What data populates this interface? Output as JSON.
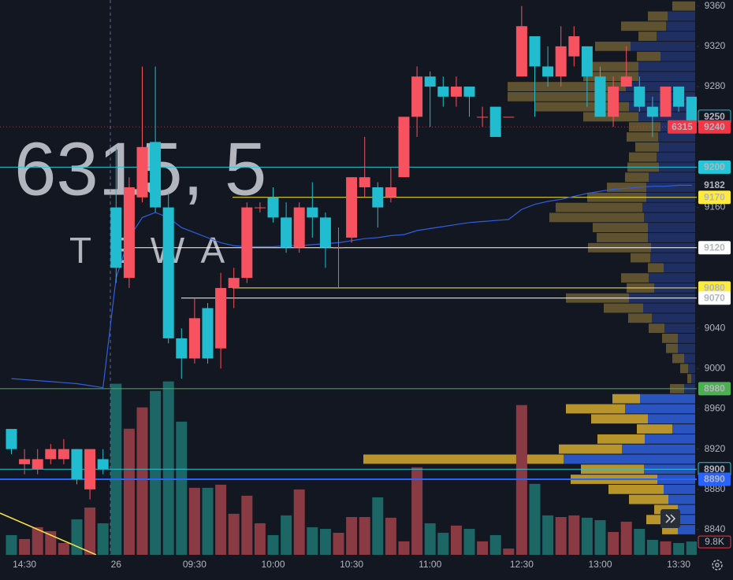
{
  "chart_data": {
    "type": "candlestick",
    "watermark": [
      "6315, 5",
      "TEWA"
    ],
    "categories": [
      null,
      "14:30",
      null,
      null,
      null,
      null,
      null,
      null,
      "26",
      null,
      null,
      null,
      null,
      null,
      "09:30",
      null,
      null,
      null,
      null,
      null,
      "10:00",
      null,
      null,
      null,
      null,
      null,
      "10:30",
      null,
      null,
      null,
      null,
      null,
      "11:00",
      null,
      null,
      null,
      null,
      null,
      null,
      "12:30",
      null,
      null,
      null,
      null,
      null,
      "13:00",
      null,
      null,
      null,
      null,
      null,
      "13:30",
      null
    ],
    "open": [
      8940,
      8905,
      8900,
      8910,
      8910,
      8920,
      8880,
      8910,
      9160,
      9090,
      9170,
      9225,
      9160,
      9030,
      9010,
      9060,
      9020,
      9080,
      9090,
      9160,
      9170,
      9150,
      9120,
      9160,
      9150,
      9120,
      9130,
      9180,
      9180,
      9170,
      9190,
      9250,
      9290,
      9280,
      9270,
      9280,
      9250,
      9260,
      9250,
      9290,
      9330,
      9300,
      9290,
      9310,
      9320,
      9290,
      9250,
      9280,
      9280,
      9260,
      9250,
      9280,
      9270
    ],
    "high": [
      8940,
      8920,
      8920,
      8925,
      8930,
      8920,
      8920,
      8920,
      9220,
      9190,
      9300,
      9300,
      9175,
      9040,
      9070,
      9065,
      9095,
      9100,
      9165,
      9165,
      9180,
      9165,
      9165,
      9185,
      9155,
      9140,
      9190,
      9230,
      9185,
      9200,
      9250,
      9300,
      9295,
      9290,
      9290,
      9280,
      9260,
      9260,
      9250,
      9360,
      9330,
      9320,
      9340,
      9340,
      9320,
      9300,
      9290,
      9320,
      9290,
      9270,
      9280,
      9280,
      9270
    ],
    "low": [
      8915,
      8895,
      8895,
      8905,
      8905,
      8885,
      8870,
      8895,
      9085,
      9080,
      9165,
      9155,
      9025,
      8990,
      9005,
      9005,
      9000,
      9060,
      9085,
      9155,
      9145,
      9115,
      9115,
      9130,
      9100,
      9080,
      9125,
      9170,
      9140,
      9165,
      9190,
      9230,
      9240,
      9260,
      9260,
      9250,
      9240,
      9230,
      9250,
      9290,
      9250,
      9280,
      9280,
      9300,
      9260,
      9250,
      9240,
      9280,
      9255,
      9230,
      9250,
      9255,
      9235
    ],
    "close": [
      8920,
      8910,
      8910,
      8920,
      8920,
      8890,
      8920,
      8900,
      9100,
      9180,
      9220,
      9160,
      9030,
      9010,
      9050,
      9010,
      9080,
      9090,
      9160,
      9160,
      9150,
      9120,
      9160,
      9150,
      9120,
      9120,
      9190,
      9190,
      9160,
      9180,
      9250,
      9290,
      9280,
      9270,
      9280,
      9270,
      9250,
      9230,
      9250,
      9340,
      9300,
      9290,
      9320,
      9330,
      9290,
      9250,
      9280,
      9290,
      9260,
      9250,
      9280,
      9260,
      9240
    ],
    "up_color": "#f7525f",
    "down_color": "#22bcd0",
    "ylim": [
      8815,
      9366
    ],
    "yticks": [
      8840,
      8880,
      8920,
      8960,
      9000,
      9040,
      9080,
      9120,
      9160,
      9200,
      9240,
      9280,
      9320,
      9360
    ],
    "volume": {
      "values": [
        14500,
        11600,
        20300,
        17400,
        8700,
        26100,
        34800,
        23200,
        125900,
        92800,
        108500,
        120600,
        127600,
        98000,
        49300,
        49300,
        51600,
        30200,
        43500,
        23200,
        14500,
        29000,
        48100,
        20300,
        19100,
        16200,
        27800,
        27800,
        42300,
        27300,
        9900,
        64400,
        23200,
        16200,
        21500,
        19100,
        9900,
        14500,
        4600,
        110200,
        52200,
        29000,
        27800,
        29000,
        27300,
        25500,
        16800,
        24400,
        19100,
        11000,
        9900,
        8700,
        9800
      ],
      "ylim": [
        0,
        150000
      ],
      "up_color": "#8a3a42",
      "down_color": "#1c6666",
      "last": {
        "value": 9800,
        "label": "9.8K"
      },
      "label_color": "#f23645"
    },
    "vwap": {
      "color": "#2f5fe0",
      "values": [
        8990,
        8989,
        8988,
        8987,
        8986,
        8985,
        8983,
        8981,
        9090,
        9130,
        9150,
        9155,
        9150,
        9140,
        9135,
        9130,
        9125,
        9122,
        9121,
        9121,
        9121,
        9122,
        9122,
        9123,
        9124,
        9125,
        9127,
        9129,
        9130,
        9132,
        9133,
        9137,
        9139,
        9141,
        9143,
        9145,
        9146,
        9147,
        9148,
        9158,
        9163,
        9166,
        9168,
        9171,
        9174,
        9176,
        9178,
        9179,
        9180,
        9181,
        9181,
        9182,
        9182
      ]
    },
    "profile": {
      "levels": [
        9360,
        9350,
        9340,
        9330,
        9320,
        9310,
        9300,
        9290,
        9280,
        9270,
        9260,
        9250,
        9240,
        9230,
        9220,
        9210,
        9200,
        9190,
        9180,
        9170,
        9160,
        9150,
        9140,
        9130,
        9120,
        9110,
        9100,
        9090,
        9080,
        9070,
        9060,
        9050,
        9040,
        9030,
        9020,
        9010,
        9000,
        8990,
        8980,
        8970,
        8960,
        8950,
        8940,
        8930,
        8920,
        8910,
        8900,
        8890,
        8880,
        8870,
        8860,
        8850,
        8840
      ],
      "up": [
        29,
        25,
        57,
        23,
        45,
        30,
        60,
        70,
        150,
        140,
        120,
        70,
        40,
        40,
        30,
        35,
        40,
        30,
        50,
        75,
        110,
        120,
        70,
        65,
        80,
        25,
        20,
        35,
        35,
        80,
        50,
        30,
        20,
        20,
        15,
        15,
        10,
        5,
        18,
        35,
        75,
        72,
        45,
        60,
        80,
        254,
        80,
        110,
        70,
        50,
        30,
        30,
        20
      ],
      "down": [
        0,
        35,
        37,
        49,
        82,
        44,
        72,
        72,
        88,
        98,
        84,
        72,
        44,
        47,
        46,
        49,
        46,
        59,
        62,
        62,
        67,
        65,
        60,
        60,
        56,
        57,
        40,
        59,
        52,
        84,
        66,
        55,
        39,
        22,
        22,
        14,
        9,
        5,
        14,
        70,
        89,
        60,
        29,
        64,
        93,
        167,
        65,
        48,
        40,
        34,
        22,
        32,
        22
      ],
      "xlim": [
        0,
        420
      ],
      "value_area": [
        8840,
        8970
      ],
      "colors": {
        "up": "#b8942c",
        "down": "#2a55c0",
        "up_dim": "#5e5230",
        "down_dim": "#1f2f62"
      }
    },
    "levels": [
      {
        "value": 9250,
        "color": "#22bcd0",
        "badge": "outline",
        "line": false
      },
      {
        "value": 9240,
        "color": "#f23645",
        "badge": "fill",
        "line": "dotted",
        "tag": "6315"
      },
      {
        "value": 9200,
        "color": "#26c6da",
        "badge": "fill",
        "line": "solid"
      },
      {
        "value": 9182,
        "color": "#4a7dff",
        "badge": "plain",
        "line": false
      },
      {
        "value": 9170,
        "color": "#ffeb3b",
        "badge": "fill",
        "line": "solid"
      },
      {
        "value": 9120,
        "color": "#ffffff",
        "badge": "fill",
        "line": "solid"
      },
      {
        "value": 9080,
        "color": "#ffeb3b",
        "badge": "fill",
        "line": "solid"
      },
      {
        "value": 9070,
        "color": "#ffffff",
        "badge": "fill",
        "line": "solid"
      },
      {
        "value": 8980,
        "color": "#4caf50",
        "badge": "fill",
        "line": "solid"
      },
      {
        "value": 8900,
        "color": "#26c6da",
        "badge": "outline",
        "line": "solid"
      },
      {
        "value": 8890,
        "color": "#2962ff",
        "badge": "fill",
        "line": "thick"
      }
    ]
  }
}
